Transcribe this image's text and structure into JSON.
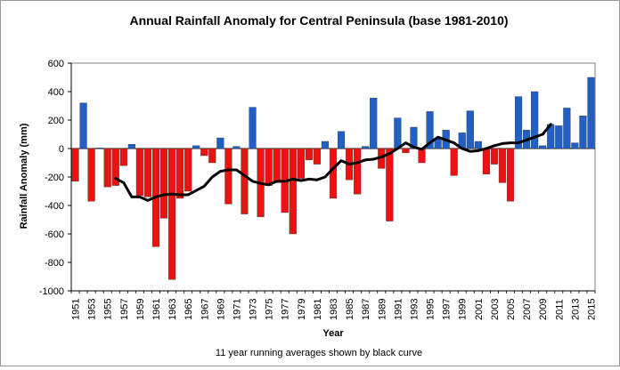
{
  "chart_data": {
    "type": "bar",
    "title": "Annual Rainfall Anomaly for Central Peninsula (base 1981-2010)",
    "xlabel": "Year",
    "ylabel": "Rainfall Anomaly (mm)",
    "ylim": [
      -1000,
      600
    ],
    "yticks": [
      "600",
      "400",
      "200",
      "0",
      "-200",
      "-400",
      "-600",
      "-800",
      "-1000"
    ],
    "xtick_labels": [
      "1951",
      "1953",
      "1955",
      "1957",
      "1959",
      "1961",
      "1963",
      "1965",
      "1967",
      "1969",
      "1971",
      "1973",
      "1975",
      "1977",
      "1979",
      "1981",
      "1983",
      "1985",
      "1987",
      "1989",
      "1991",
      "1993",
      "1995",
      "1997",
      "1999",
      "2001",
      "2003",
      "2005",
      "2007",
      "2009",
      "2011",
      "2013",
      "2015"
    ],
    "footnote": "11 year running averages shown by black curve",
    "colors": {
      "positive": "#1f5fc6",
      "negative": "#ee1111",
      "curve": "#000000"
    },
    "years": [
      1951,
      1952,
      1953,
      1954,
      1955,
      1956,
      1957,
      1958,
      1959,
      1960,
      1961,
      1962,
      1963,
      1964,
      1965,
      1966,
      1967,
      1968,
      1969,
      1970,
      1971,
      1972,
      1973,
      1974,
      1975,
      1976,
      1977,
      1978,
      1979,
      1980,
      1981,
      1982,
      1983,
      1984,
      1985,
      1986,
      1987,
      1988,
      1989,
      1990,
      1991,
      1992,
      1993,
      1994,
      1995,
      1996,
      1997,
      1998,
      1999,
      2000,
      2001,
      2002,
      2003,
      2004,
      2005,
      2006,
      2007,
      2008,
      2009,
      2010,
      2011,
      2012,
      2013,
      2014,
      2015
    ],
    "series": [
      {
        "name": "Annual anomaly",
        "values": [
          -230,
          320,
          -370,
          5,
          -270,
          -260,
          -120,
          30,
          -330,
          -340,
          -690,
          -490,
          -920,
          -350,
          -300,
          20,
          -50,
          -100,
          75,
          -390,
          15,
          -460,
          290,
          -480,
          -260,
          -240,
          -450,
          -600,
          -210,
          -80,
          -110,
          50,
          -350,
          120,
          -220,
          -320,
          15,
          355,
          -140,
          -510,
          215,
          -30,
          150,
          -100,
          260,
          70,
          130,
          -190,
          110,
          265,
          50,
          -180,
          -110,
          -240,
          -370,
          365,
          130,
          400,
          20,
          170,
          160,
          285,
          40,
          230,
          500
        ]
      },
      {
        "name": "11 year running average",
        "x": [
          1956,
          1957,
          1958,
          1959,
          1960,
          1961,
          1962,
          1963,
          1964,
          1965,
          1966,
          1967,
          1968,
          1969,
          1970,
          1971,
          1972,
          1973,
          1974,
          1975,
          1976,
          1977,
          1978,
          1979,
          1980,
          1981,
          1982,
          1983,
          1984,
          1985,
          1986,
          1987,
          1988,
          1989,
          1990,
          1991,
          1992,
          1993,
          1994,
          1995,
          1996,
          1997,
          1998,
          1999,
          2000,
          2001,
          2002,
          2003,
          2004,
          2005,
          2006,
          2007,
          2008,
          2009,
          2010
        ],
        "values": [
          -210,
          -240,
          -340,
          -340,
          -365,
          -340,
          -325,
          -320,
          -325,
          -325,
          -295,
          -265,
          -200,
          -160,
          -150,
          -150,
          -190,
          -230,
          -245,
          -255,
          -230,
          -230,
          -215,
          -225,
          -215,
          -220,
          -200,
          -140,
          -85,
          -110,
          -100,
          -80,
          -75,
          -60,
          -35,
          0,
          40,
          10,
          -5,
          40,
          80,
          60,
          40,
          0,
          -20,
          -15,
          0,
          20,
          35,
          40,
          40,
          60,
          80,
          100,
          170
        ]
      }
    ]
  }
}
